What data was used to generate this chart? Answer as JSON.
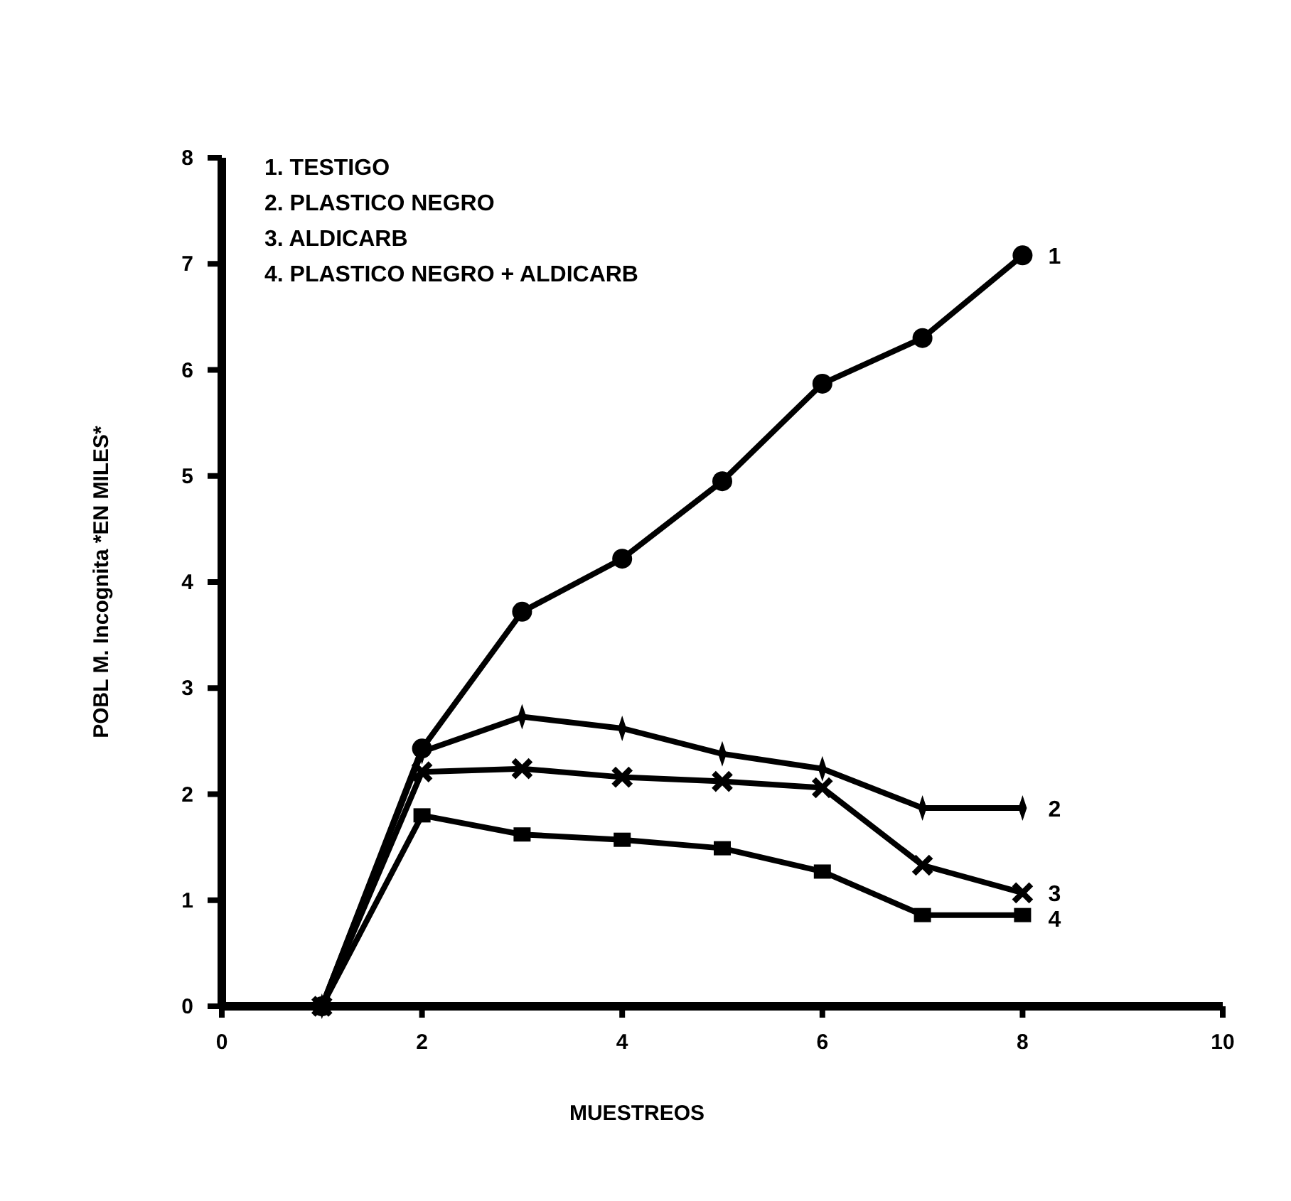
{
  "chart_data": {
    "type": "line",
    "xlabel": "MUESTREOS",
    "ylabel": "POBL M. Incognita *EN MILES*",
    "x": [
      1,
      2,
      3,
      4,
      5,
      6,
      7,
      8
    ],
    "xlim": [
      0,
      10
    ],
    "xticks": [
      0,
      2,
      4,
      6,
      8,
      10
    ],
    "ylim": [
      0,
      8
    ],
    "yticks": [
      0,
      1,
      2,
      3,
      4,
      5,
      6,
      7,
      8
    ],
    "grid": false,
    "series": [
      {
        "name": "1",
        "color": "#000000",
        "marker": "circle",
        "values": [
          0,
          2.43,
          3.72,
          4.22,
          4.95,
          5.87,
          6.3,
          7.08
        ]
      },
      {
        "name": "2",
        "color": "#000000",
        "marker": "diamond",
        "values": [
          0,
          2.4,
          2.73,
          2.62,
          2.38,
          2.24,
          1.87,
          1.87
        ]
      },
      {
        "name": "3",
        "color": "#000000",
        "marker": "cross",
        "values": [
          0,
          2.21,
          2.24,
          2.16,
          2.12,
          2.06,
          1.33,
          1.07
        ]
      },
      {
        "name": "4",
        "color": "#000000",
        "marker": "square",
        "values": [
          0,
          1.8,
          1.62,
          1.57,
          1.49,
          1.27,
          0.86,
          0.86
        ]
      }
    ],
    "annotations": [
      "1. TESTIGO",
      "2. PLASTICO NEGRO",
      "3. ALDICARB",
      "4. PLASTICO NEGRO + ALDICARB"
    ]
  }
}
